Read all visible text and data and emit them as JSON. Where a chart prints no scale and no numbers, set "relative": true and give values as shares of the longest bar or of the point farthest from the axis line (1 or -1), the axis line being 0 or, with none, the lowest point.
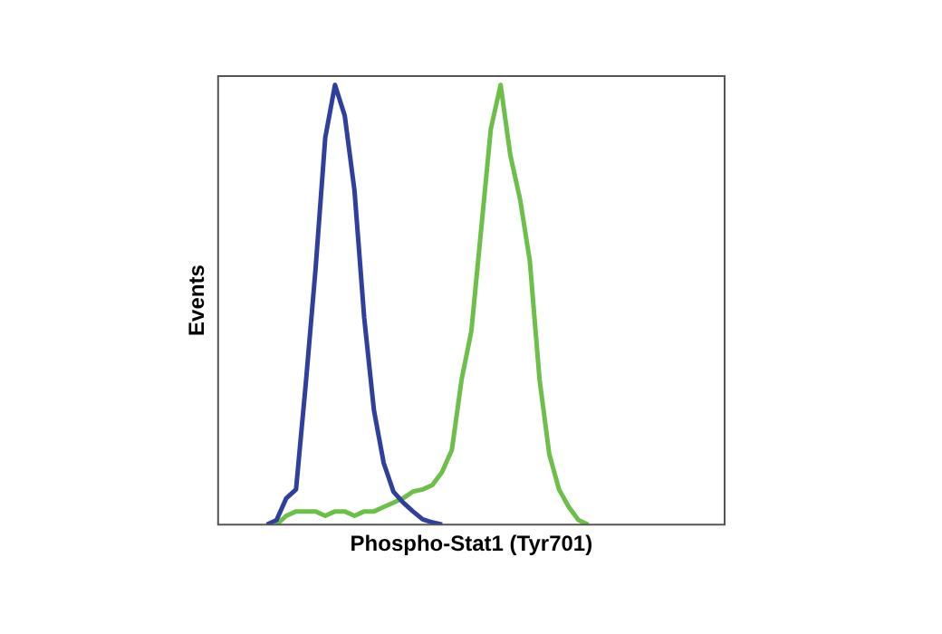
{
  "chart_data": {
    "type": "line",
    "relative": true,
    "xlabel": "Phospho-Stat1 (Tyr701)",
    "ylabel": "Events",
    "grid": false,
    "legend": false,
    "marker": "none",
    "line_style": "solid",
    "categories": [
      null,
      null,
      null,
      null,
      null,
      null,
      null,
      null,
      null,
      null,
      null,
      null,
      null,
      null,
      null,
      null,
      null,
      null,
      null,
      null,
      null,
      null,
      null,
      null,
      null,
      null,
      null,
      null,
      null,
      null,
      null,
      null,
      null,
      null,
      null,
      null,
      null,
      null,
      null,
      null,
      null,
      null,
      null,
      null,
      null,
      null,
      null,
      null,
      null,
      null,
      null,
      null,
      null
    ],
    "series": [
      {
        "color": "#2e3f9e",
        "values": [
          null,
          null,
          null,
          null,
          null,
          0,
          0.01,
          0.06,
          0.08,
          0.32,
          0.58,
          0.88,
          1.0,
          0.93,
          0.76,
          0.47,
          0.26,
          0.14,
          0.075,
          0.05,
          0.03,
          0.012,
          0.005,
          0,
          null,
          null,
          null,
          null,
          null,
          null,
          null,
          null,
          null,
          null,
          null,
          null,
          null,
          null,
          null,
          null,
          null,
          null,
          null,
          null,
          null,
          null,
          null,
          null,
          null,
          null,
          null,
          null,
          null
        ]
      },
      {
        "color": "#6cc04a",
        "values": [
          null,
          null,
          null,
          null,
          null,
          null,
          0,
          0.02,
          0.03,
          0.03,
          0.03,
          0.02,
          0.03,
          0.03,
          0.02,
          0.03,
          0.03,
          0.04,
          0.05,
          0.06,
          0.075,
          0.08,
          0.09,
          0.12,
          0.17,
          0.33,
          0.44,
          0.67,
          0.9,
          1.0,
          0.84,
          0.74,
          0.6,
          0.33,
          0.16,
          0.08,
          0.04,
          0.01,
          0,
          null,
          null,
          null,
          null,
          null,
          null,
          null,
          null,
          null,
          null,
          null,
          null,
          null,
          null
        ]
      }
    ]
  }
}
